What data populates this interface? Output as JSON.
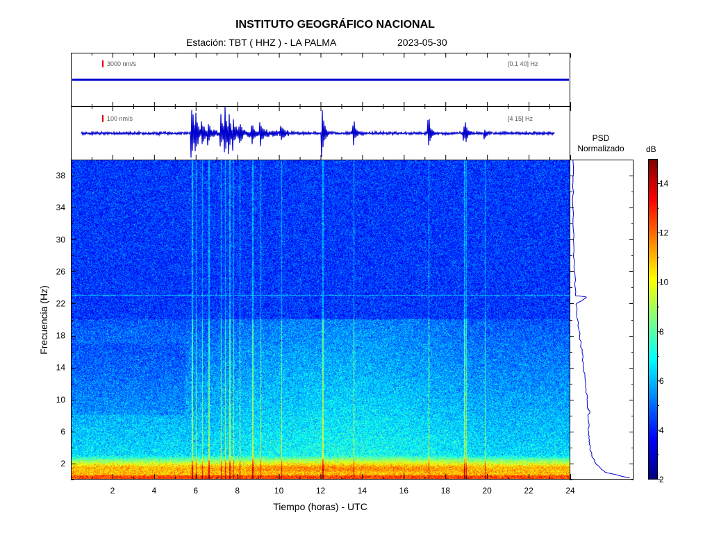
{
  "header": {
    "title": "INSTITUTO GEOGRÁFICO NACIONAL",
    "station": "Estación:  TBT ( HHZ ) - LA PALMA",
    "date": "2023-05-30"
  },
  "traces": [
    {
      "scale": "3000 nm/s",
      "band": "[0.1 40] Hz",
      "scale_color": "#e00000",
      "trace_color": "#0000cc"
    },
    {
      "scale": "100 nm/s",
      "band": "[4 15] Hz",
      "scale_color": "#e00000",
      "trace_color": "#0000cc"
    }
  ],
  "psd_panel": {
    "title_line1": "PSD",
    "title_line2": "Normalizado",
    "curve_color": "#0000cc"
  },
  "colorbar": {
    "label": "dB",
    "ticks": [
      "2",
      "4",
      "6",
      "8",
      "10",
      "12",
      "14"
    ],
    "range": [
      2,
      15
    ]
  },
  "chart_data": {
    "type": "heatmap",
    "xlabel": "Tiempo (horas) - UTC",
    "ylabel": "Frecuencia  (Hz)",
    "xlim": [
      0,
      24
    ],
    "ylim": [
      0,
      40
    ],
    "xticks": [
      "2",
      "4",
      "6",
      "8",
      "10",
      "12",
      "14",
      "16",
      "18",
      "20",
      "22",
      "24"
    ],
    "yticks": [
      "2",
      "6",
      "10",
      "14",
      "18",
      "22",
      "26",
      "30",
      "34",
      "38"
    ],
    "colormap": "jet",
    "clim_db": [
      2,
      15
    ],
    "background_level_db": {
      "low_freq_0_1_hz": 11,
      "freq_2_10_hz": 6,
      "freq_10_20_hz": 5,
      "freq_above_20_hz": 4
    },
    "event_times_h": [
      5.8,
      6.0,
      6.3,
      6.6,
      7.2,
      7.4,
      7.6,
      7.8,
      8.1,
      8.7,
      9.1,
      10.1,
      12.1,
      13.6,
      17.2,
      18.9,
      19.0,
      19.9
    ],
    "persistent_line_hz": 23,
    "psd_curve": [
      {
        "f": 0.3,
        "v": 0.95
      },
      {
        "f": 1,
        "v": 0.55
      },
      {
        "f": 2,
        "v": 0.4
      },
      {
        "f": 3,
        "v": 0.33
      },
      {
        "f": 4,
        "v": 0.3
      },
      {
        "f": 5,
        "v": 0.29
      },
      {
        "f": 6,
        "v": 0.28
      },
      {
        "f": 8,
        "v": 0.27
      },
      {
        "f": 8.5,
        "v": 0.3
      },
      {
        "f": 9,
        "v": 0.26
      },
      {
        "f": 10,
        "v": 0.25
      },
      {
        "f": 12,
        "v": 0.23
      },
      {
        "f": 14,
        "v": 0.2
      },
      {
        "f": 16,
        "v": 0.17
      },
      {
        "f": 18,
        "v": 0.13
      },
      {
        "f": 20,
        "v": 0.1
      },
      {
        "f": 22,
        "v": 0.07
      },
      {
        "f": 22.9,
        "v": 0.24
      },
      {
        "f": 23.1,
        "v": 0.06
      },
      {
        "f": 26,
        "v": 0.05
      },
      {
        "f": 30,
        "v": 0.03
      },
      {
        "f": 34,
        "v": 0.02
      },
      {
        "f": 38,
        "v": 0.02
      },
      {
        "f": 40,
        "v": 0.02
      }
    ]
  }
}
